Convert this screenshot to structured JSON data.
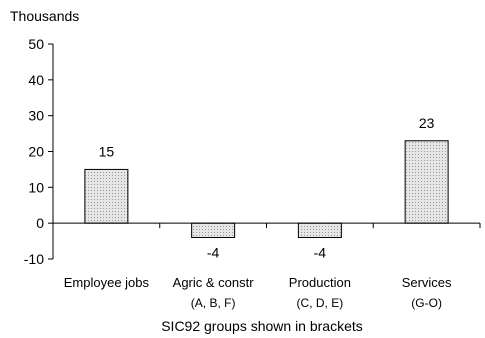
{
  "chart_data": {
    "type": "bar",
    "unit_label": "Thousands",
    "xlabel": "SIC92 groups shown in brackets",
    "categories": [
      {
        "line1": "Employee jobs",
        "line2": ""
      },
      {
        "line1": "Agric & constr",
        "line2": "(A, B, F)"
      },
      {
        "line1": "Production",
        "line2": "(C, D, E)"
      },
      {
        "line1": "Services",
        "line2": "(G-O)"
      }
    ],
    "values": [
      15,
      -4,
      -4,
      23
    ],
    "data_labels": [
      "15",
      "-4",
      "-4",
      "23"
    ],
    "yticks": [
      "50",
      "40",
      "30",
      "20",
      "10",
      "0",
      "-10"
    ],
    "ylim": [
      -10,
      50
    ],
    "grid": false,
    "bar_fill": "dotted light grey",
    "colors": {
      "bar_fill": "#e3e3e3",
      "bar_dots": "#9a9a9a",
      "axis": "#000000"
    }
  }
}
